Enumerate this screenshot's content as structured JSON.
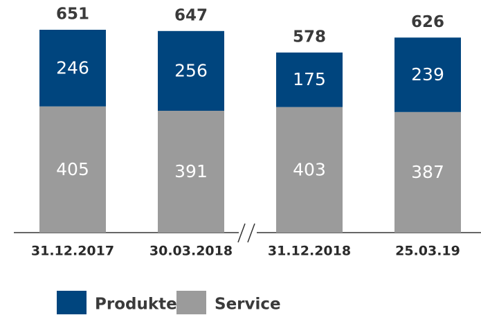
{
  "chart_data": {
    "type": "stacked_bar",
    "categories": [
      "31.12.2017",
      "30.03.2018",
      "31.12.2018",
      "25.03.19"
    ],
    "series": [
      {
        "name": "Service",
        "color": "#9b9b9b",
        "values": [
          405,
          391,
          403,
          387
        ]
      },
      {
        "name": "Produkte",
        "color": "#00457e",
        "values": [
          246,
          256,
          175,
          239
        ]
      }
    ],
    "totals": [
      651,
      647,
      578,
      626
    ],
    "legend": "bottom-left"
  }
}
